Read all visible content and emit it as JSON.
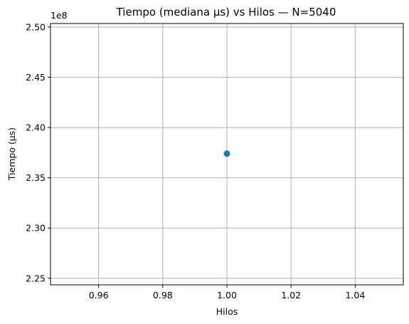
{
  "chart_data": {
    "type": "scatter",
    "title": "Tiempo (mediana µs) vs Hilos — N=5040",
    "xlabel": "Hilos",
    "ylabel": "Tiempo (µs)",
    "y_offset_text": "1e8",
    "xlim": [
      0.945,
      1.055
    ],
    "ylim": [
      2.2435,
      2.5035
    ],
    "x_ticks": [
      0.96,
      0.98,
      1.0,
      1.02,
      1.04
    ],
    "x_tick_labels": [
      "0.96",
      "0.98",
      "1.00",
      "1.02",
      "1.04"
    ],
    "y_ticks": [
      2.25,
      2.3,
      2.35,
      2.4,
      2.45,
      2.5
    ],
    "y_tick_labels": [
      "2.25",
      "2.30",
      "2.35",
      "2.40",
      "2.45",
      "2.50"
    ],
    "grid": true,
    "series": [
      {
        "color": "#1f77b4",
        "x": [
          1.0
        ],
        "y": [
          2.374
        ]
      }
    ]
  }
}
